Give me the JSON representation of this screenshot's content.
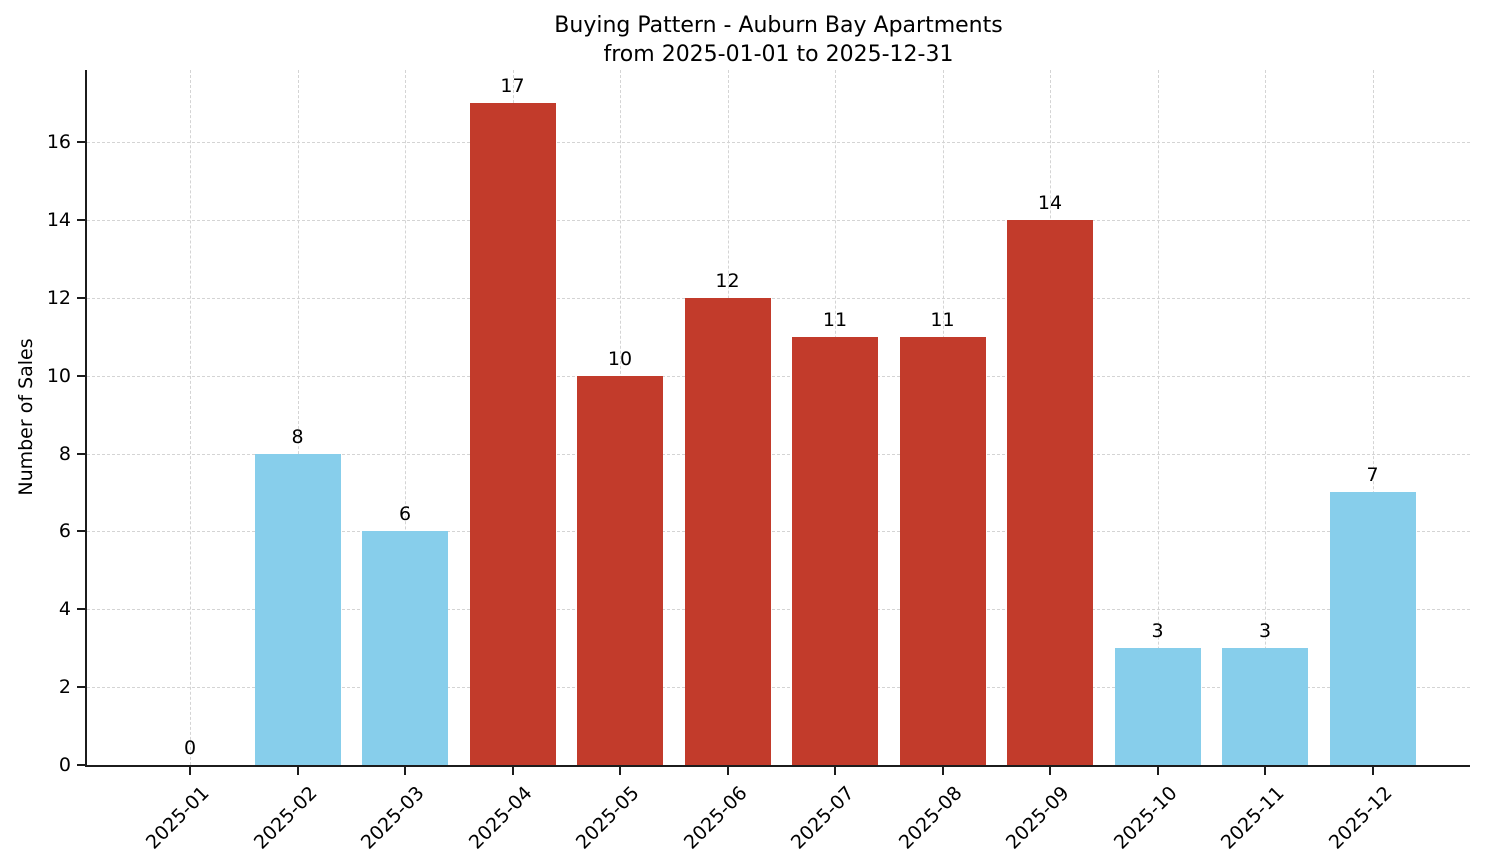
{
  "chart_data": {
    "type": "bar",
    "title": "Buying Pattern - Auburn Bay Apartments",
    "subtitle": "from 2025-01-01 to 2025-12-31",
    "xlabel": "",
    "ylabel": "Number of Sales",
    "categories": [
      "2025-01",
      "2025-02",
      "2025-03",
      "2025-04",
      "2025-05",
      "2025-06",
      "2025-07",
      "2025-08",
      "2025-09",
      "2025-10",
      "2025-11",
      "2025-12"
    ],
    "values": [
      0,
      8,
      6,
      17,
      10,
      12,
      11,
      11,
      14,
      3,
      3,
      7
    ],
    "bar_colors": [
      "#87ceeb",
      "#87ceeb",
      "#87ceeb",
      "#c23b2b",
      "#c23b2b",
      "#c23b2b",
      "#c23b2b",
      "#c23b2b",
      "#c23b2b",
      "#87ceeb",
      "#87ceeb",
      "#87ceeb"
    ],
    "value_labels": [
      "0",
      "8",
      "6",
      "17",
      "10",
      "12",
      "11",
      "11",
      "14",
      "3",
      "3",
      "7"
    ],
    "yticks": [
      0,
      2,
      4,
      6,
      8,
      10,
      12,
      14,
      16
    ],
    "ylim": [
      0,
      17.85
    ],
    "grid": "dashed-both-axes",
    "legend": "none",
    "colors": {
      "bar_low_activity": "#87ceeb",
      "bar_high_activity": "#c23b2b",
      "grid": "#d4d4d4",
      "axis": "#1c1c1c",
      "text": "#000000"
    }
  }
}
